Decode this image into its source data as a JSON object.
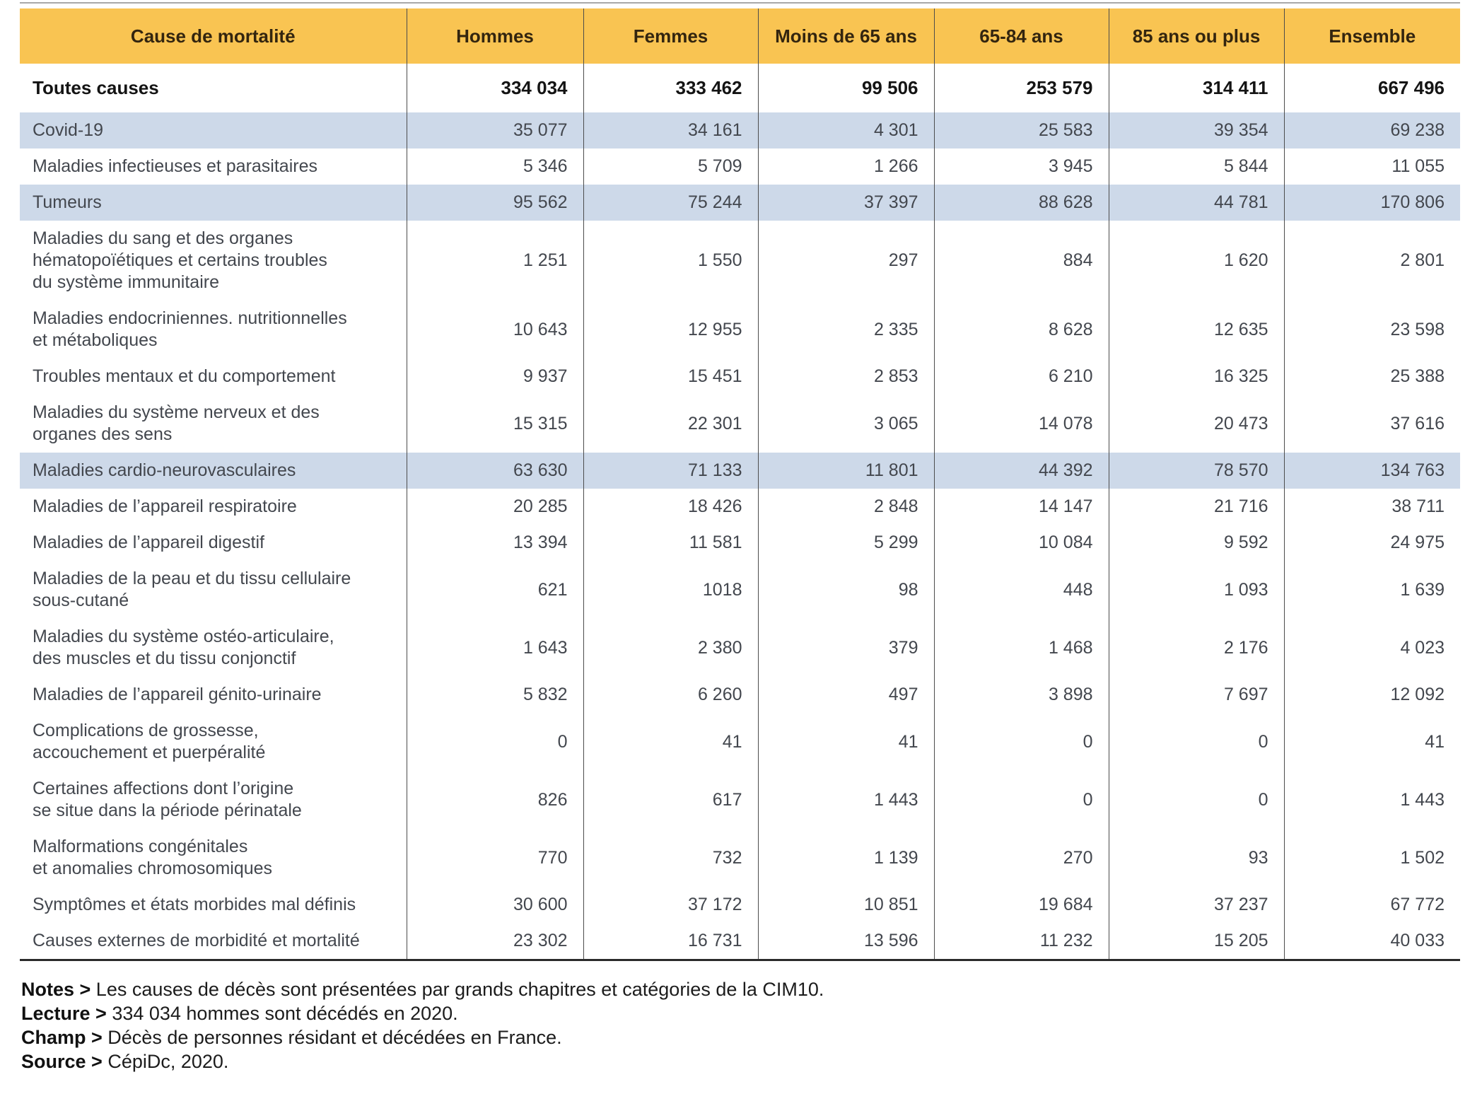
{
  "table": {
    "columns": [
      "Cause de mortalité",
      "Hommes",
      "Femmes",
      "Moins de 65 ans",
      "65-84 ans",
      "85 ans ou plus",
      "Ensemble"
    ],
    "total_row": {
      "label": "Toutes causes",
      "values": [
        "334 034",
        "333 462",
        "99 506",
        "253 579",
        "314 411",
        "667 496"
      ]
    },
    "rows": [
      {
        "label": "Covid-19",
        "values": [
          "35 077",
          "34 161",
          "4 301",
          "25 583",
          "39 354",
          "69 238"
        ],
        "highlight": true
      },
      {
        "label": "Maladies infectieuses et parasitaires",
        "values": [
          "5 346",
          "5 709",
          "1 266",
          "3 945",
          "5 844",
          "11 055"
        ],
        "highlight": false
      },
      {
        "label": "Tumeurs",
        "values": [
          "95 562",
          "75 244",
          "37 397",
          "88 628",
          "44 781",
          "170 806"
        ],
        "highlight": true
      },
      {
        "label": "Maladies du sang et des organes\nhématopoïétiques et certains troubles\ndu système immunitaire",
        "values": [
          "1 251",
          "1 550",
          "297",
          "884",
          "1 620",
          "2 801"
        ],
        "highlight": false
      },
      {
        "label": "Maladies endocriniennes. nutritionnelles\net métaboliques",
        "values": [
          "10 643",
          "12 955",
          "2 335",
          "8 628",
          "12 635",
          "23 598"
        ],
        "highlight": false
      },
      {
        "label": "Troubles mentaux et du comportement",
        "values": [
          "9 937",
          "15 451",
          "2 853",
          "6 210",
          "16 325",
          "25 388"
        ],
        "highlight": false
      },
      {
        "label": "Maladies du système nerveux et des\norganes des sens",
        "values": [
          "15 315",
          "22 301",
          "3 065",
          "14 078",
          "20 473",
          "37 616"
        ],
        "highlight": false
      },
      {
        "label": "Maladies cardio-neurovasculaires",
        "values": [
          "63 630",
          "71 133",
          "11 801",
          "44 392",
          "78 570",
          "134 763"
        ],
        "highlight": true
      },
      {
        "label": "Maladies de l’appareil respiratoire",
        "values": [
          "20 285",
          "18 426",
          "2 848",
          "14 147",
          "21 716",
          "38 711"
        ],
        "highlight": false
      },
      {
        "label": "Maladies de l’appareil digestif",
        "values": [
          "13 394",
          "11 581",
          "5 299",
          "10 084",
          "9 592",
          "24 975"
        ],
        "highlight": false
      },
      {
        "label": "Maladies de la peau et du tissu cellulaire\nsous-cutané",
        "values": [
          "621",
          "1018",
          "98",
          "448",
          "1 093",
          "1 639"
        ],
        "highlight": false
      },
      {
        "label": "Maladies du système ostéo-articulaire,\ndes muscles et du tissu conjonctif",
        "values": [
          "1 643",
          "2 380",
          "379",
          "1 468",
          "2 176",
          "4 023"
        ],
        "highlight": false
      },
      {
        "label": "Maladies de l’appareil génito-urinaire",
        "values": [
          "5 832",
          "6 260",
          "497",
          "3 898",
          "7 697",
          "12 092"
        ],
        "highlight": false
      },
      {
        "label": "Complications de grossesse,\naccouchement et puerpéralité",
        "values": [
          "0",
          "41",
          "41",
          "0",
          "0",
          "41"
        ],
        "highlight": false
      },
      {
        "label": "Certaines affections dont l’origine\nse situe dans la période périnatale",
        "values": [
          "826",
          "617",
          "1 443",
          "0",
          "0",
          "1 443"
        ],
        "highlight": false
      },
      {
        "label": "Malformations congénitales\net anomalies chromosomiques",
        "values": [
          "770",
          "732",
          "1 139",
          "270",
          "93",
          "1 502"
        ],
        "highlight": false
      },
      {
        "label": "Symptômes et états morbides mal définis",
        "values": [
          "30 600",
          "37 172",
          "10 851",
          "19 684",
          "37 237",
          "67 772"
        ],
        "highlight": false
      },
      {
        "label": "Causes externes de morbidité et mortalité",
        "values": [
          "23 302",
          "16 731",
          "13 596",
          "11 232",
          "15 205",
          "40 033"
        ],
        "highlight": false
      }
    ]
  },
  "notes": [
    {
      "label": "Notes >",
      "text": " Les causes de décès sont présentées par grands chapitres et catégories de la CIM10."
    },
    {
      "label": "Lecture >",
      "text": " 334 034 hommes sont décédés en 2020."
    },
    {
      "label": "Champ >",
      "text": " Décès de personnes résidant et décédées en France."
    },
    {
      "label": "Source >",
      "text": " CépiDc, 2020."
    }
  ],
  "colors": {
    "header_bg": "#f9c452",
    "header_text": "#33250f",
    "highlight_row_bg": "#cdd9e9",
    "body_text": "#43474e",
    "grid_line": "#4c4c4c",
    "bottom_rule": "#2b2b2b",
    "top_rule": "#a9a9a9"
  }
}
